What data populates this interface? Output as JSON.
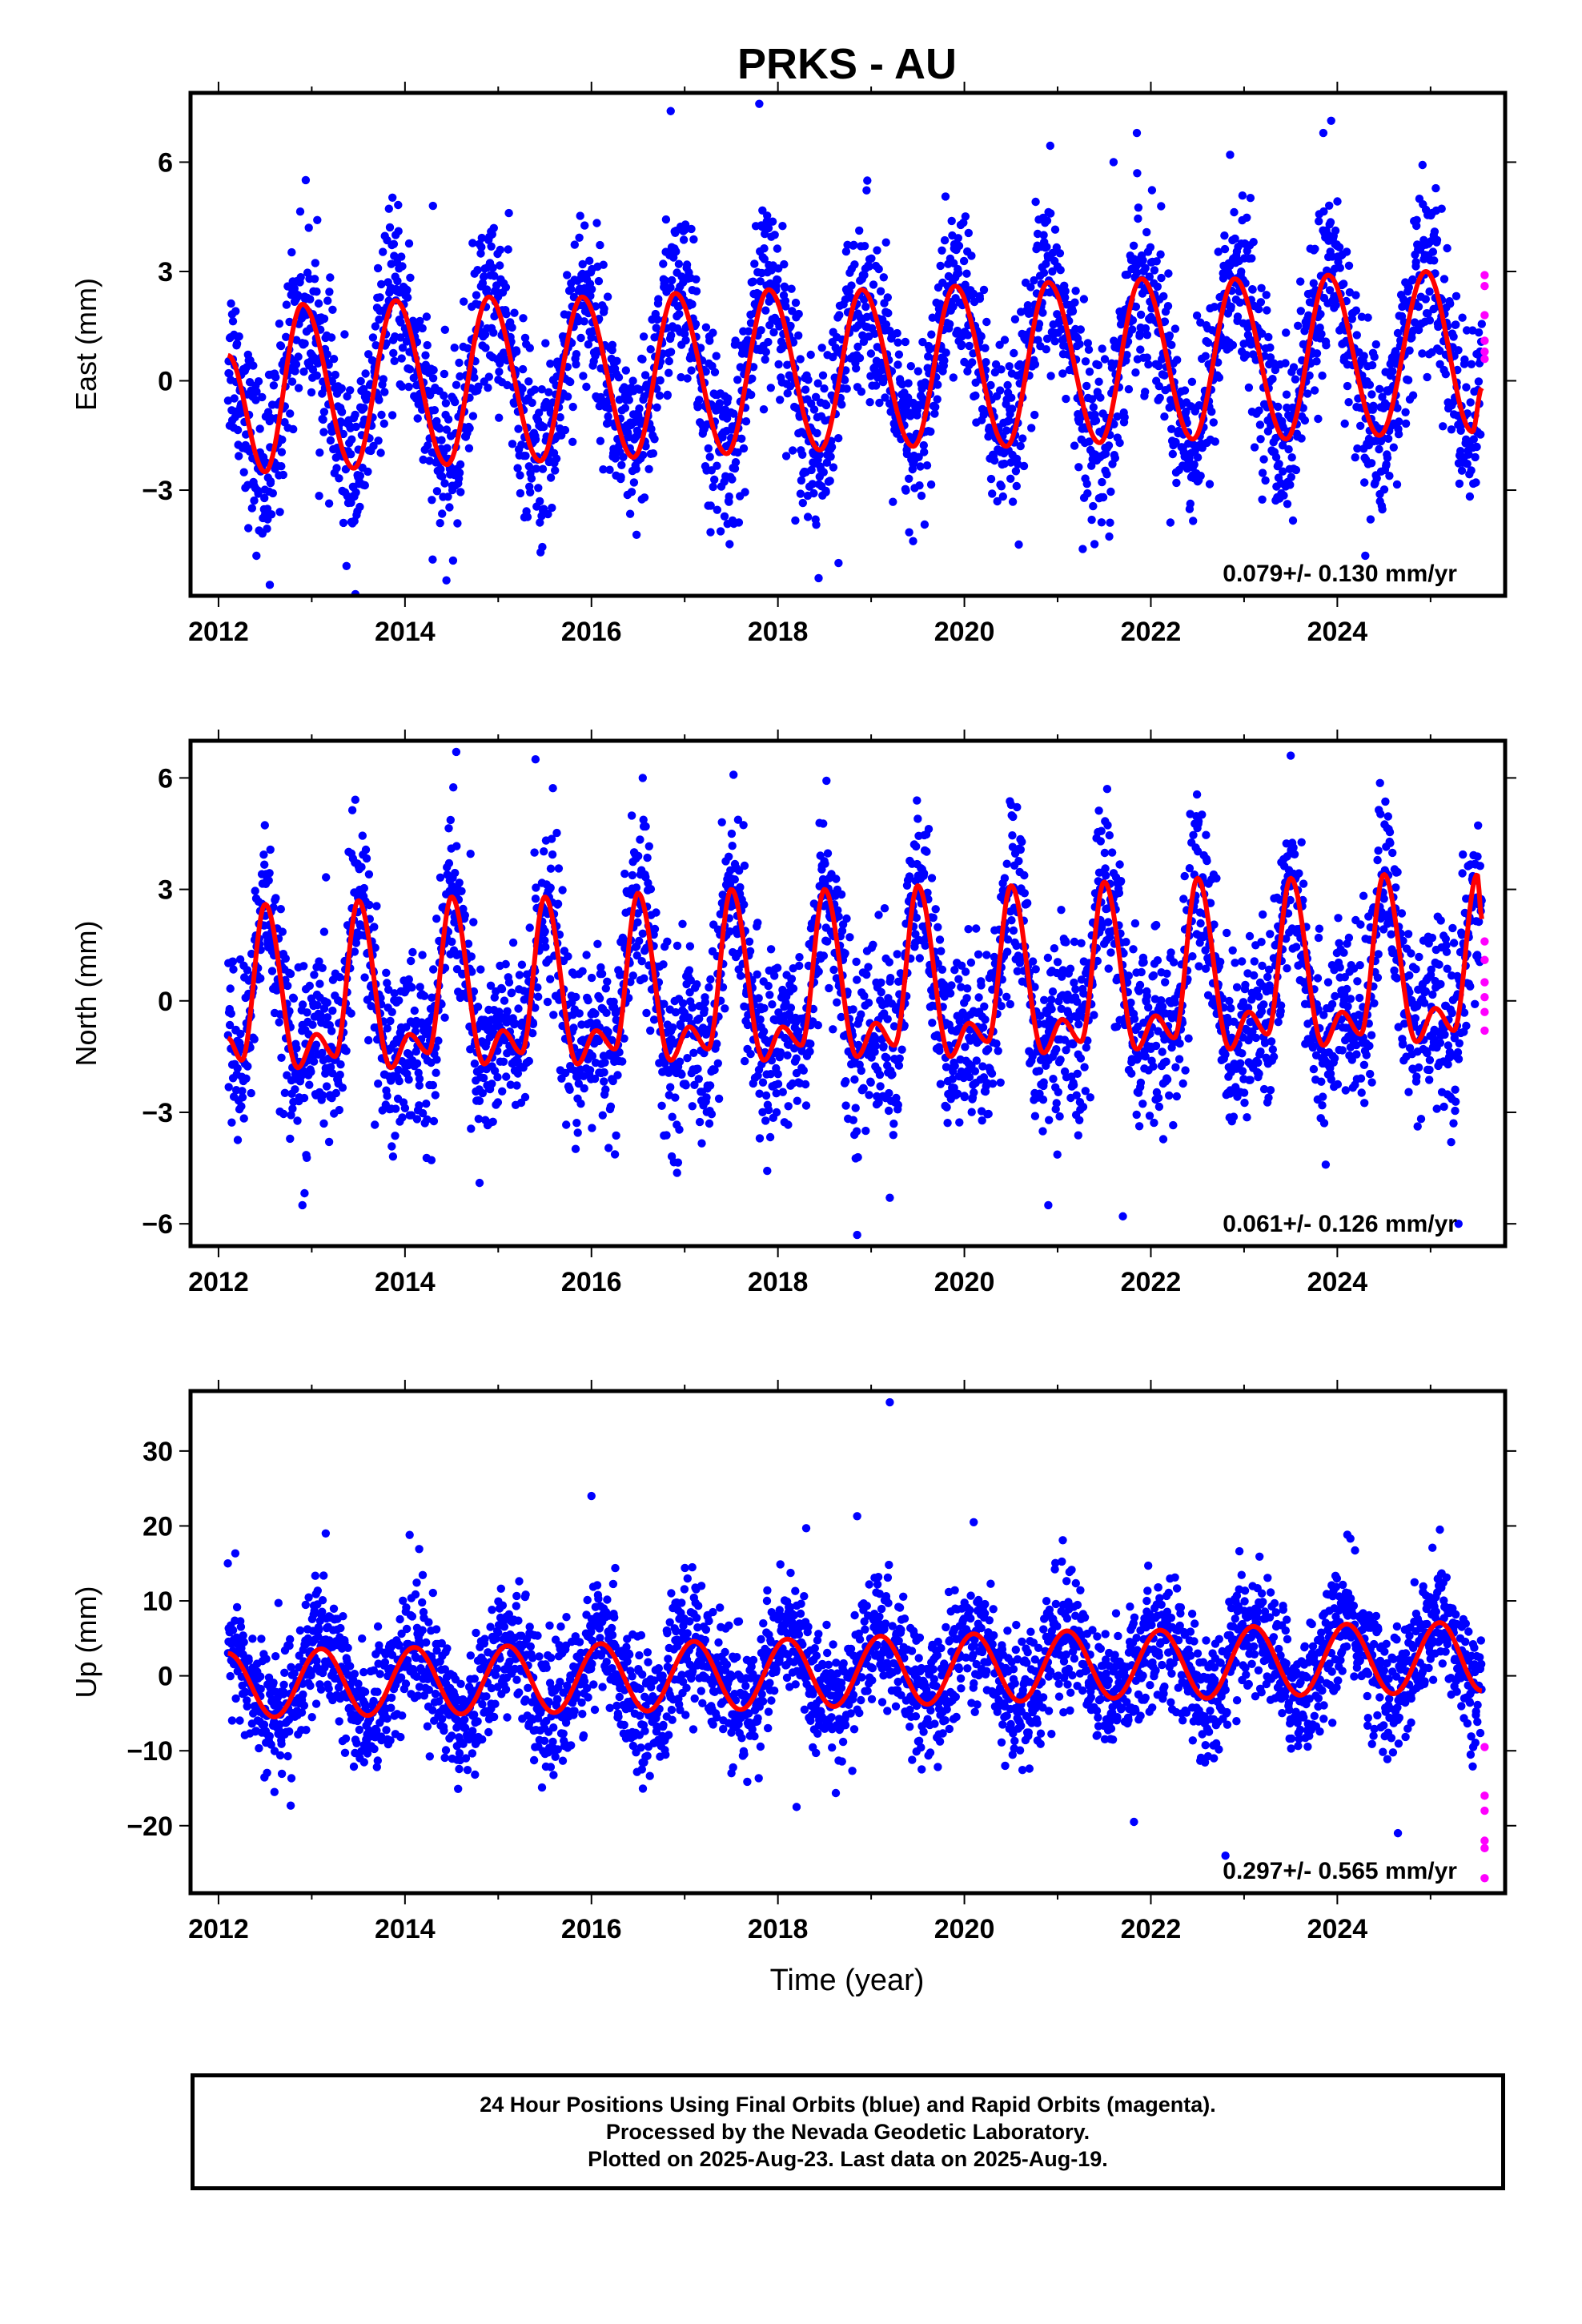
{
  "title": "PRKS - AU",
  "x_axis_label": "Time (year)",
  "colors": {
    "final_orbits": "#0000ff",
    "rapid_orbits": "#ff00ff",
    "fit": "#ff0000"
  },
  "caption": [
    "24 Hour Positions Using Final Orbits (blue) and Rapid Orbits (magenta).",
    "Processed by the Nevada Geodetic Laboratory.",
    "Plotted on 2025-Aug-23. Last data on 2025-Aug-19."
  ],
  "chart_data": [
    {
      "type": "scatter",
      "ylabel": "East (mm)",
      "xlim": [
        2011.7,
        2025.8
      ],
      "ylim": [
        -5.9,
        7.9
      ],
      "xticks": [
        2012,
        2014,
        2016,
        2018,
        2020,
        2022,
        2024
      ],
      "yticks": [
        -3,
        0,
        3,
        6
      ],
      "ytick_labels": [
        "−3",
        "0",
        "3",
        "6"
      ],
      "rate_label": "0.079+/- 0.130 mm/yr",
      "data_start": 2012.1,
      "data_end": 2025.55,
      "fit": {
        "period": "annual",
        "peaks": [
          {
            "x": 2012.5,
            "y": -2.5
          },
          {
            "x": 2012.9,
            "y": 2.1
          },
          {
            "x": 2013.45,
            "y": -2.4
          },
          {
            "x": 2013.9,
            "y": 2.2
          },
          {
            "x": 2014.45,
            "y": -2.3
          },
          {
            "x": 2014.9,
            "y": 2.3
          },
          {
            "x": 2015.45,
            "y": -2.2
          },
          {
            "x": 2015.9,
            "y": 2.3
          },
          {
            "x": 2016.45,
            "y": -2.1
          },
          {
            "x": 2016.9,
            "y": 2.4
          },
          {
            "x": 2017.45,
            "y": -2.0
          },
          {
            "x": 2017.9,
            "y": 2.5
          },
          {
            "x": 2018.45,
            "y": -1.9
          },
          {
            "x": 2018.9,
            "y": 2.5
          },
          {
            "x": 2019.45,
            "y": -1.8
          },
          {
            "x": 2019.9,
            "y": 2.6
          },
          {
            "x": 2020.45,
            "y": -1.8
          },
          {
            "x": 2020.9,
            "y": 2.7
          },
          {
            "x": 2021.45,
            "y": -1.7
          },
          {
            "x": 2021.9,
            "y": 2.8
          },
          {
            "x": 2022.45,
            "y": -1.6
          },
          {
            "x": 2022.9,
            "y": 2.8
          },
          {
            "x": 2023.45,
            "y": -1.6
          },
          {
            "x": 2023.9,
            "y": 2.9
          },
          {
            "x": 2024.45,
            "y": -1.5
          },
          {
            "x": 2024.95,
            "y": 3.0
          },
          {
            "x": 2025.45,
            "y": -1.4
          }
        ],
        "start": {
          "x": 2012.1,
          "y": 0.7
        },
        "end": {
          "x": 2025.55,
          "y": -0.2
        }
      },
      "scatter_sigma": 1.2,
      "outliers": [
        {
          "x": 2016.85,
          "y": 7.4
        },
        {
          "x": 2017.8,
          "y": 7.6
        },
        {
          "x": 2012.55,
          "y": -5.6
        },
        {
          "x": 2024.3,
          "y": -4.8
        },
        {
          "x": 2018.65,
          "y": -5.0
        },
        {
          "x": 2013.9,
          "y": 4.0
        },
        {
          "x": 2014.3,
          "y": 4.8
        },
        {
          "x": 2021.85,
          "y": 6.8
        },
        {
          "x": 2023.85,
          "y": 6.8
        },
        {
          "x": 2019.45,
          "y": -4.4
        },
        {
          "x": 2021.6,
          "y": 6.0
        },
        {
          "x": 2022.85,
          "y": 6.2
        }
      ],
      "rapid_points": [
        {
          "x": 2025.58,
          "y": 2.9
        },
        {
          "x": 2025.58,
          "y": 2.6
        },
        {
          "x": 2025.58,
          "y": 1.8
        },
        {
          "x": 2025.58,
          "y": 1.1
        },
        {
          "x": 2025.58,
          "y": 0.8
        },
        {
          "x": 2025.58,
          "y": 0.6
        }
      ]
    },
    {
      "type": "scatter",
      "ylabel": "North (mm)",
      "xlim": [
        2011.7,
        2025.8
      ],
      "ylim": [
        -6.6,
        7.0
      ],
      "xticks": [
        2012,
        2014,
        2016,
        2018,
        2020,
        2022,
        2024
      ],
      "yticks": [
        -6,
        -3,
        0,
        3,
        6
      ],
      "ytick_labels": [
        "−6",
        "−3",
        "0",
        "3",
        "6"
      ],
      "rate_label": "0.061+/- 0.126 mm/yr",
      "data_start": 2012.1,
      "data_end": 2025.55,
      "fit": {
        "period": "semiannual",
        "peaks": [
          {
            "x": 2012.25,
            "y": -1.6
          },
          {
            "x": 2012.5,
            "y": 2.6
          },
          {
            "x": 2012.85,
            "y": -1.8
          },
          {
            "x": 2013.05,
            "y": -0.9
          },
          {
            "x": 2013.25,
            "y": -1.5
          },
          {
            "x": 2013.5,
            "y": 2.7
          },
          {
            "x": 2013.85,
            "y": -1.8
          },
          {
            "x": 2014.05,
            "y": -0.9
          },
          {
            "x": 2014.25,
            "y": -1.4
          },
          {
            "x": 2014.5,
            "y": 2.8
          },
          {
            "x": 2014.85,
            "y": -1.7
          },
          {
            "x": 2015.05,
            "y": -0.8
          },
          {
            "x": 2015.25,
            "y": -1.4
          },
          {
            "x": 2015.5,
            "y": 2.8
          },
          {
            "x": 2015.85,
            "y": -1.7
          },
          {
            "x": 2016.05,
            "y": -0.8
          },
          {
            "x": 2016.25,
            "y": -1.3
          },
          {
            "x": 2016.5,
            "y": 2.9
          },
          {
            "x": 2016.85,
            "y": -1.6
          },
          {
            "x": 2017.05,
            "y": -0.7
          },
          {
            "x": 2017.25,
            "y": -1.3
          },
          {
            "x": 2017.5,
            "y": 3.0
          },
          {
            "x": 2017.85,
            "y": -1.6
          },
          {
            "x": 2018.05,
            "y": -0.7
          },
          {
            "x": 2018.25,
            "y": -1.2
          },
          {
            "x": 2018.5,
            "y": 3.0
          },
          {
            "x": 2018.85,
            "y": -1.5
          },
          {
            "x": 2019.05,
            "y": -0.6
          },
          {
            "x": 2019.25,
            "y": -1.2
          },
          {
            "x": 2019.5,
            "y": 3.1
          },
          {
            "x": 2019.85,
            "y": -1.5
          },
          {
            "x": 2020.05,
            "y": -0.6
          },
          {
            "x": 2020.25,
            "y": -1.1
          },
          {
            "x": 2020.5,
            "y": 3.1
          },
          {
            "x": 2020.85,
            "y": -1.4
          },
          {
            "x": 2021.05,
            "y": -0.5
          },
          {
            "x": 2021.25,
            "y": -1.1
          },
          {
            "x": 2021.5,
            "y": 3.2
          },
          {
            "x": 2021.85,
            "y": -1.3
          },
          {
            "x": 2022.05,
            "y": -0.4
          },
          {
            "x": 2022.25,
            "y": -1.0
          },
          {
            "x": 2022.5,
            "y": 3.3
          },
          {
            "x": 2022.85,
            "y": -1.3
          },
          {
            "x": 2023.05,
            "y": -0.3
          },
          {
            "x": 2023.25,
            "y": -0.9
          },
          {
            "x": 2023.5,
            "y": 3.3
          },
          {
            "x": 2023.85,
            "y": -1.2
          },
          {
            "x": 2024.05,
            "y": -0.3
          },
          {
            "x": 2024.25,
            "y": -0.9
          },
          {
            "x": 2024.5,
            "y": 3.4
          },
          {
            "x": 2024.85,
            "y": -1.1
          },
          {
            "x": 2025.05,
            "y": -0.2
          },
          {
            "x": 2025.25,
            "y": -0.8
          },
          {
            "x": 2025.5,
            "y": 3.4
          }
        ],
        "start": {
          "x": 2012.1,
          "y": -1.0
        },
        "end": {
          "x": 2025.55,
          "y": 2.2
        }
      },
      "scatter_sigma": 1.2,
      "outliers": [
        {
          "x": 2014.55,
          "y": 6.7
        },
        {
          "x": 2015.4,
          "y": 6.5
        },
        {
          "x": 2023.5,
          "y": 6.6
        },
        {
          "x": 2018.85,
          "y": -6.3
        },
        {
          "x": 2025.3,
          "y": -6.0
        },
        {
          "x": 2012.9,
          "y": -5.5
        },
        {
          "x": 2014.8,
          "y": -4.9
        },
        {
          "x": 2019.2,
          "y": -5.3
        },
        {
          "x": 2021.7,
          "y": -5.8
        },
        {
          "x": 2020.9,
          "y": -5.5
        },
        {
          "x": 2016.55,
          "y": 6.0
        },
        {
          "x": 2019.5,
          "y": 4.9
        }
      ],
      "rapid_points": [
        {
          "x": 2025.58,
          "y": 1.6
        },
        {
          "x": 2025.58,
          "y": 1.1
        },
        {
          "x": 2025.58,
          "y": 0.5
        },
        {
          "x": 2025.58,
          "y": 0.1
        },
        {
          "x": 2025.58,
          "y": -0.3
        },
        {
          "x": 2025.58,
          "y": -0.8
        }
      ]
    },
    {
      "type": "scatter",
      "ylabel": "Up (mm)",
      "xlim": [
        2011.7,
        2025.8
      ],
      "ylim": [
        -29,
        38
      ],
      "xticks": [
        2012,
        2014,
        2016,
        2018,
        2020,
        2022,
        2024
      ],
      "yticks": [
        -20,
        -10,
        0,
        10,
        20,
        30
      ],
      "ytick_labels": [
        "−20",
        "−10",
        "0",
        "10",
        "20",
        "30"
      ],
      "rate_label": "0.297+/- 0.565 mm/yr",
      "data_start": 2012.1,
      "data_end": 2025.55,
      "fit": {
        "period": "annual",
        "peaks": [
          {
            "x": 2012.6,
            "y": -5.5
          },
          {
            "x": 2013.1,
            "y": 3.6
          },
          {
            "x": 2013.6,
            "y": -5.3
          },
          {
            "x": 2014.1,
            "y": 3.8
          },
          {
            "x": 2014.6,
            "y": -5.1
          },
          {
            "x": 2015.1,
            "y": 4.0
          },
          {
            "x": 2015.6,
            "y": -4.9
          },
          {
            "x": 2016.1,
            "y": 4.3
          },
          {
            "x": 2016.6,
            "y": -4.7
          },
          {
            "x": 2017.1,
            "y": 4.6
          },
          {
            "x": 2017.6,
            "y": -4.5
          },
          {
            "x": 2018.1,
            "y": 4.9
          },
          {
            "x": 2018.6,
            "y": -4.1
          },
          {
            "x": 2019.1,
            "y": 5.3
          },
          {
            "x": 2019.6,
            "y": -3.8
          },
          {
            "x": 2020.1,
            "y": 5.6
          },
          {
            "x": 2020.6,
            "y": -3.4
          },
          {
            "x": 2021.1,
            "y": 6.0
          },
          {
            "x": 2021.6,
            "y": -3.0
          },
          {
            "x": 2022.1,
            "y": 6.1
          },
          {
            "x": 2022.6,
            "y": -3.0
          },
          {
            "x": 2023.1,
            "y": 6.6
          },
          {
            "x": 2023.6,
            "y": -2.6
          },
          {
            "x": 2024.1,
            "y": 6.9
          },
          {
            "x": 2024.6,
            "y": -2.4
          },
          {
            "x": 2025.1,
            "y": 7.1
          }
        ],
        "start": {
          "x": 2012.1,
          "y": 3.0
        },
        "end": {
          "x": 2025.55,
          "y": -2.0
        }
      },
      "scatter_sigma": 4.2,
      "outliers": [
        {
          "x": 2019.2,
          "y": 36.5
        },
        {
          "x": 2016.0,
          "y": 24.0
        },
        {
          "x": 2018.85,
          "y": 21.3
        },
        {
          "x": 2022.8,
          "y": -24.0
        },
        {
          "x": 2024.65,
          "y": -21.0
        },
        {
          "x": 2018.2,
          "y": -17.5
        },
        {
          "x": 2012.1,
          "y": 15.0
        },
        {
          "x": 2013.15,
          "y": 19.0
        },
        {
          "x": 2014.05,
          "y": 18.8
        },
        {
          "x": 2020.1,
          "y": 20.5
        },
        {
          "x": 2025.1,
          "y": 19.5
        },
        {
          "x": 2012.6,
          "y": -15.5
        }
      ],
      "rapid_points": [
        {
          "x": 2025.58,
          "y": -9.5
        },
        {
          "x": 2025.58,
          "y": -16.0
        },
        {
          "x": 2025.58,
          "y": -18.0
        },
        {
          "x": 2025.58,
          "y": -22.0
        },
        {
          "x": 2025.58,
          "y": -23.0
        },
        {
          "x": 2025.58,
          "y": -27.0
        }
      ]
    }
  ]
}
